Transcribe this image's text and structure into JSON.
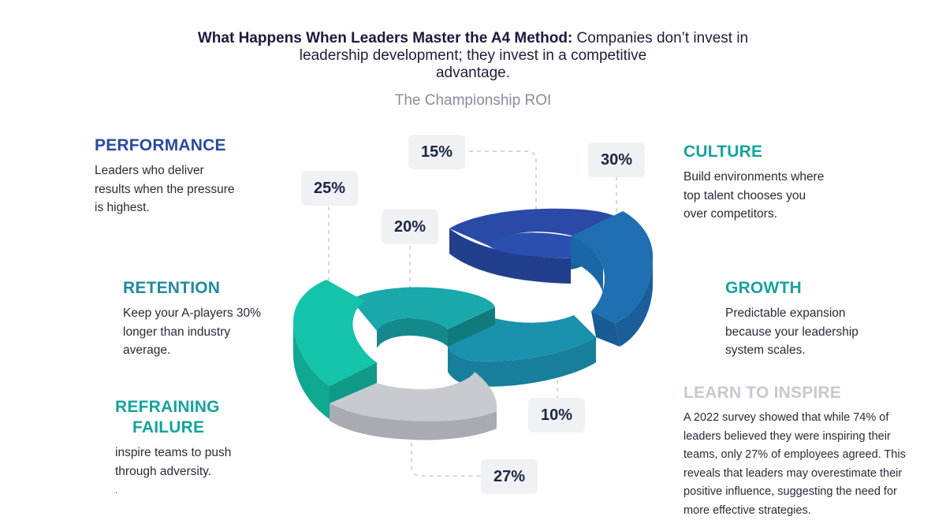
{
  "header": {
    "bold": "What Happens When Leaders Master the A4 Method:",
    "line1_rest": " Companies don’t invest in",
    "line2": "leadership development; they invest in a competitive",
    "line3": "advantage."
  },
  "subtitle": "The Championship ROI",
  "sections": {
    "performance": {
      "title": "PERFORMANCE",
      "lines": [
        "Leaders who deliver",
        "results when the pressure",
        "is highest."
      ]
    },
    "retention": {
      "title": "RETENTION",
      "lines": [
        "Keep your A-players 30%",
        "longer than industry",
        "average."
      ]
    },
    "refraining": {
      "title1": "REFRAINING",
      "title2": "FAILURE",
      "lines": [
        "inspire teams to push",
        "through adversity.",
        "."
      ]
    },
    "culture": {
      "title": "CULTURE",
      "lines": [
        "Build environments where",
        "top talent chooses you",
        "over competitors."
      ]
    },
    "growth": {
      "title": "GROWTH",
      "lines": [
        "Predictable expansion",
        "because your leadership",
        "system scales."
      ]
    },
    "learn": {
      "title": "LEARN TO INSPIRE",
      "lines": [
        "A 2022 survey showed that while 74% of",
        "leaders believed they were inspiring their",
        "teams, only 27% of employees agreed. This",
        "reveals that leaders may overestimate their",
        "positive influence, suggesting the need for",
        "more effective strategies."
      ]
    }
  },
  "percentages": {
    "p15": "15%",
    "p30": "30%",
    "p25": "25%",
    "p20": "20%",
    "p10": "10%",
    "p27": "27%"
  },
  "colors": {
    "navy": "#2a4aa0",
    "blue": "#1f6fae",
    "teal_dark": "#1a91ad",
    "teal": "#18a8a8",
    "mint": "#13c2a8",
    "grey": "#c7cacf"
  }
}
